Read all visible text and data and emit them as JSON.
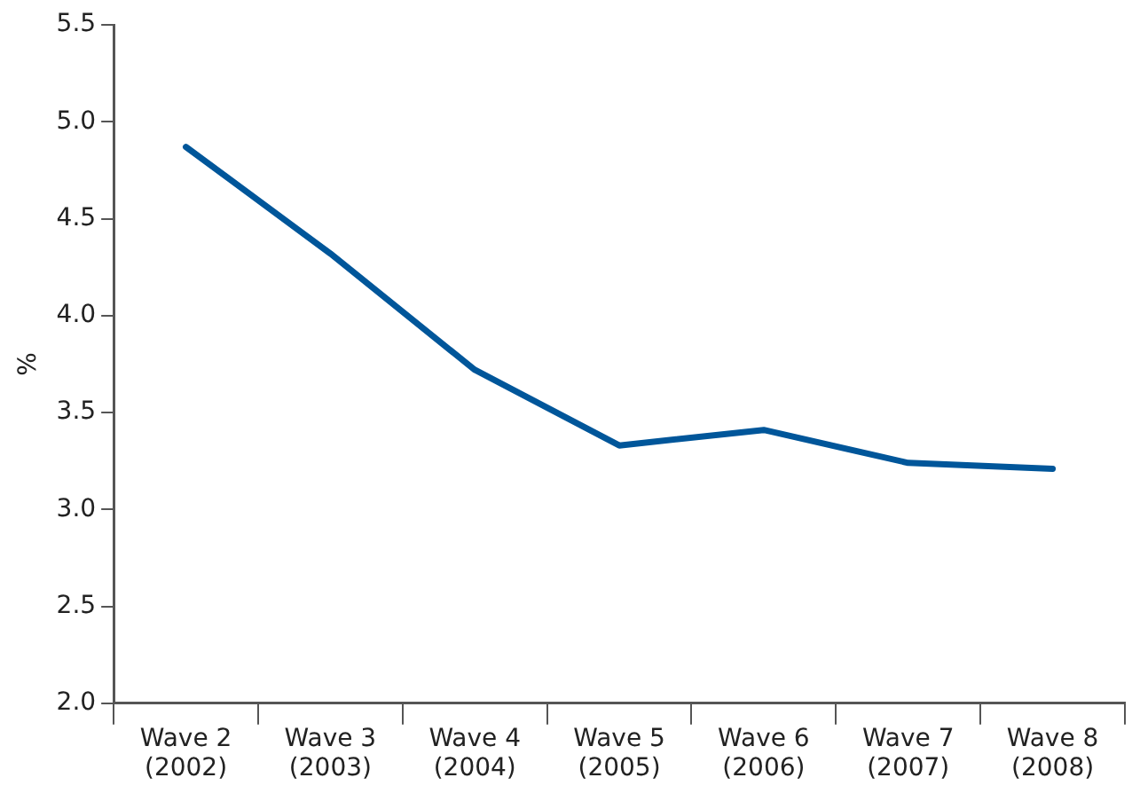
{
  "chart_data": {
    "type": "line",
    "ylabel": "%",
    "categories": [
      "Wave 2\n(2002)",
      "Wave 3\n(2003)",
      "Wave 4\n(2004)",
      "Wave 5\n(2005)",
      "Wave 6\n(2006)",
      "Wave 7\n(2007)",
      "Wave 8\n(2008)"
    ],
    "series": [
      {
        "color": "#00569a",
        "values": [
          4.87,
          4.32,
          3.72,
          3.33,
          3.41,
          3.24,
          3.21
        ]
      }
    ],
    "ylim": [
      2.0,
      5.5
    ],
    "yticks": [
      {
        "value": 2.0,
        "label": "2.0"
      },
      {
        "value": 2.5,
        "label": "2.5"
      },
      {
        "value": 3.0,
        "label": "3.0"
      },
      {
        "value": 3.5,
        "label": "3.5"
      },
      {
        "value": 4.0,
        "label": "4.0"
      },
      {
        "value": 4.5,
        "label": "4.5"
      },
      {
        "value": 5.0,
        "label": "5.0"
      },
      {
        "value": 5.5,
        "label": "5.5"
      }
    ],
    "grid": false,
    "legend": false,
    "marker": "none",
    "line_style": "solid"
  }
}
